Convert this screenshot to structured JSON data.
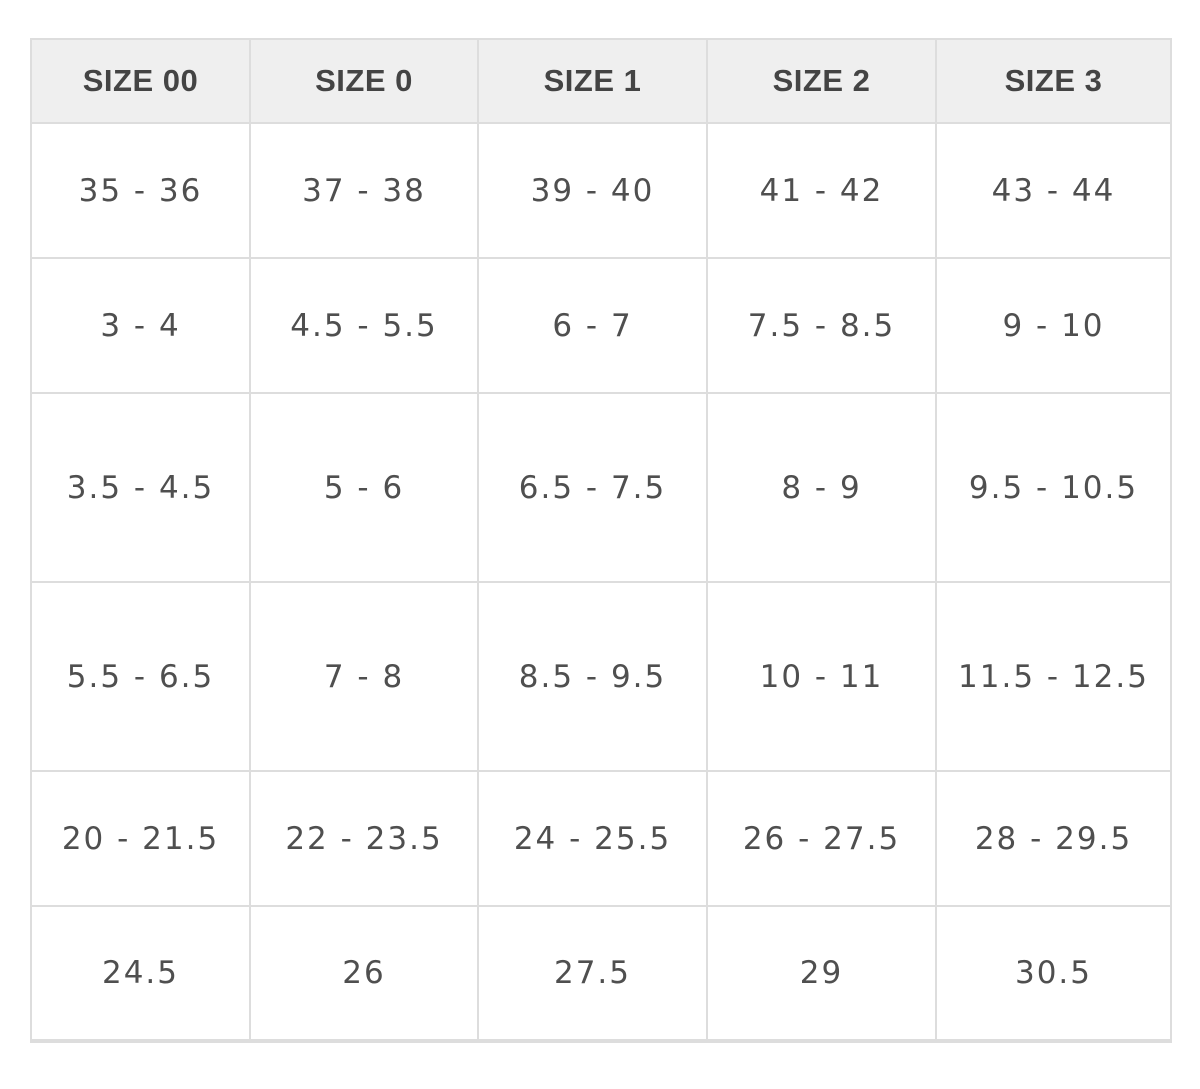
{
  "table": {
    "headers": [
      "SIZE 00",
      "SIZE 0",
      "SIZE 1",
      "SIZE 2",
      "SIZE 3"
    ],
    "rows": [
      [
        "35 - 36",
        "37 - 38",
        "39 - 40",
        "41 - 42",
        "43 - 44"
      ],
      [
        "3 - 4",
        "4.5 - 5.5",
        "6 - 7",
        "7.5 - 8.5",
        "9 - 10"
      ],
      [
        "3.5 - 4.5",
        "5 - 6",
        "6.5 - 7.5",
        "8 - 9",
        "9.5 - 10.5"
      ],
      [
        "5.5 - 6.5",
        "7 - 8",
        "8.5 - 9.5",
        "10 - 11",
        "11.5 - 12.5"
      ],
      [
        "20 - 21.5",
        "22 - 23.5",
        "24 - 25.5",
        "26 - 27.5",
        "28 - 29.5"
      ],
      [
        "24.5",
        "26",
        "27.5",
        "29",
        "30.5"
      ]
    ]
  }
}
